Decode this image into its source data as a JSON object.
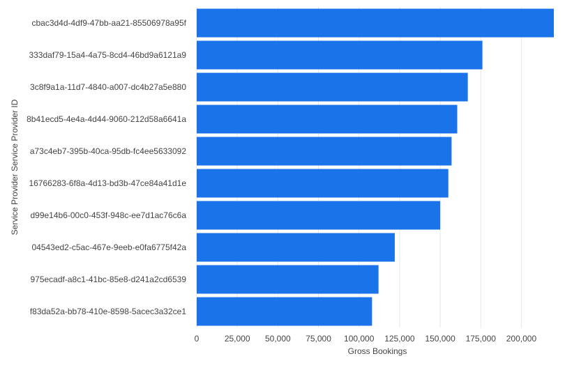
{
  "colors": {
    "bar": "#1a73e8",
    "grid": "#e6e6e6",
    "text": "#444444"
  },
  "chart_data": {
    "type": "bar",
    "orientation": "horizontal",
    "title": "",
    "xlabel": "Gross Bookings",
    "ylabel": "Service Provider Service Provider ID",
    "grid": true,
    "xlim": [
      0,
      220000
    ],
    "xticks": [
      0,
      25000,
      50000,
      75000,
      100000,
      125000,
      150000,
      175000,
      200000
    ],
    "xtick_labels": [
      "0",
      "25,000",
      "50,000",
      "75,000",
      "100,000",
      "125,000",
      "150,000",
      "175,000",
      "200,000"
    ],
    "categories": [
      "cbac3d4d-4df9-47bb-aa21-85506978a95f",
      "333daf79-15a4-4a75-8cd4-46bd9a6121a9",
      "3c8f9a1a-11d7-4840-a007-dc4b27a5e880",
      "8b41ecd5-4e4a-4d44-9060-212d58a6641a",
      "a73c4eb7-395b-40ca-95db-fc4ee5633092",
      "16766283-6f8a-4d13-bd3b-47ce84a41d1e",
      "d99e14b6-00c0-453f-948c-ee7d1ac76c6a",
      "04543ed2-c5ac-467e-9eeb-e0fa6775f42a",
      "975ecadf-a8c1-41bc-85e8-d241a2cd6539",
      "f83da52a-bb78-410e-8598-5acec3a32ce1"
    ],
    "values": [
      220000,
      176000,
      167000,
      160500,
      157000,
      155000,
      150000,
      122000,
      112000,
      108000
    ]
  }
}
